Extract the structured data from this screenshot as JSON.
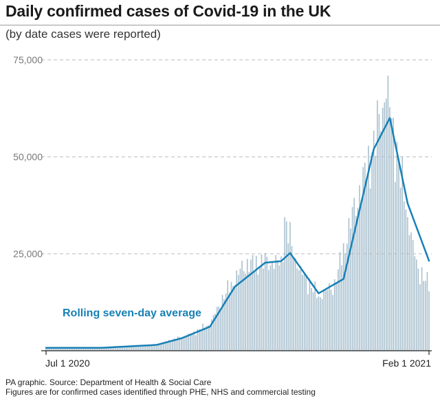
{
  "header": {
    "title": "Daily confirmed cases of Covid-19 in the UK",
    "subtitle": "(by date cases were reported)"
  },
  "footer": {
    "source": "PA graphic. Source: Department of Health & Social Care",
    "note": "Figures are for confirmed cases identified through PHE, NHS and commercial testing"
  },
  "colors": {
    "bars": "#a9c0cf",
    "average_line": "#1780b5",
    "gridline": "#b8b8b8",
    "axis": "#222222"
  },
  "chart_data": {
    "type": "bar",
    "x_start": "2020-07-01",
    "x_end": "2021-02-01",
    "xticks": [
      "Jul 1 2020",
      "Feb 1 2021"
    ],
    "yticks": [
      "75,000",
      "50,000",
      "25,000"
    ],
    "ylim": [
      0,
      75000
    ],
    "grid": true,
    "series": [
      {
        "type": "bar",
        "points": [
          [
            "2020-07-01",
            800
          ],
          [
            "2020-07-15",
            650
          ],
          [
            "2020-08-01",
            850
          ],
          [
            "2020-08-15",
            1050
          ],
          [
            "2020-09-01",
            1400
          ],
          [
            "2020-09-10",
            2900
          ],
          [
            "2020-09-20",
            4200
          ],
          [
            "2020-10-01",
            7000
          ],
          [
            "2020-10-10",
            15000
          ],
          [
            "2020-10-20",
            22000
          ],
          [
            "2020-11-01",
            23000
          ],
          [
            "2020-11-10",
            22500
          ],
          [
            "2020-11-12",
            33470
          ],
          [
            "2020-11-20",
            21000
          ],
          [
            "2020-12-01",
            14000
          ],
          [
            "2020-12-10",
            17000
          ],
          [
            "2020-12-20",
            35000
          ],
          [
            "2021-01-01",
            53000
          ],
          [
            "2021-01-08",
            68053
          ],
          [
            "2021-01-15",
            48000
          ],
          [
            "2021-01-25",
            22000
          ],
          [
            "2021-02-01",
            16800
          ]
        ]
      },
      {
        "name": "Rolling seven-day average",
        "type": "line",
        "points": [
          [
            "2020-07-01",
            750
          ],
          [
            "2020-08-01",
            750
          ],
          [
            "2020-09-01",
            1500
          ],
          [
            "2020-09-15",
            3200
          ],
          [
            "2020-10-01",
            6200
          ],
          [
            "2020-10-15",
            16500
          ],
          [
            "2020-11-01",
            22700
          ],
          [
            "2020-11-10",
            23100
          ],
          [
            "2020-11-15",
            25200
          ],
          [
            "2020-12-01",
            14800
          ],
          [
            "2020-12-15",
            18500
          ],
          [
            "2021-01-01",
            52000
          ],
          [
            "2021-01-10",
            60000
          ],
          [
            "2021-01-20",
            38000
          ],
          [
            "2021-02-01",
            23200
          ]
        ]
      }
    ]
  }
}
